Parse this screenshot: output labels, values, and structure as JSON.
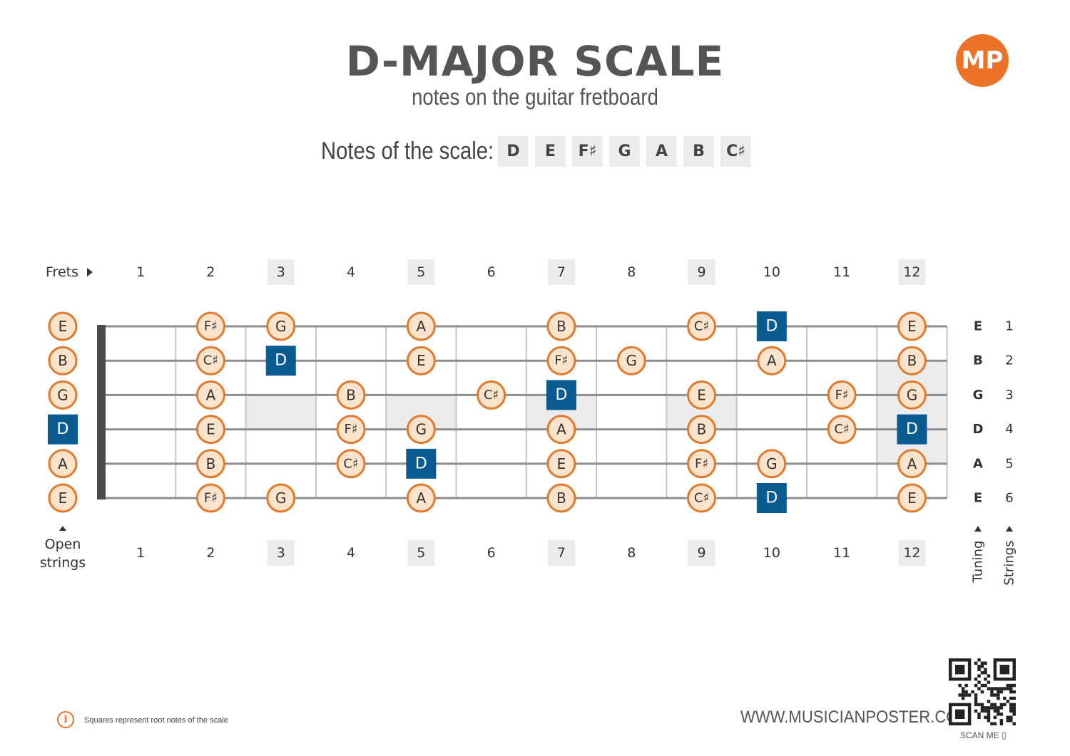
{
  "header": {
    "title": "D-MAJOR SCALE",
    "subtitle": "notes on the guitar fretboard",
    "logo_text": "MP"
  },
  "scale": {
    "label": "Notes of the scale:",
    "notes": [
      "D",
      "E",
      "F♯",
      "G",
      "A",
      "B",
      "C♯"
    ]
  },
  "fretboard": {
    "frets_label": "Frets",
    "fret_numbers": [
      "1",
      "2",
      "3",
      "4",
      "5",
      "6",
      "7",
      "8",
      "9",
      "10",
      "11",
      "12"
    ],
    "highlighted_frets": [
      3,
      5,
      7,
      9,
      12
    ],
    "open_strings_label": [
      "Open",
      "strings"
    ],
    "tuning_label": "Tuning",
    "strings_label": "Strings",
    "tuning": [
      "E",
      "B",
      "G",
      "D",
      "A",
      "E"
    ],
    "string_numbers": [
      "1",
      "2",
      "3",
      "4",
      "5",
      "6"
    ],
    "positions": [
      {
        "string": 1,
        "notes": [
          {
            "fret": 0,
            "note": "E"
          },
          {
            "fret": 2,
            "note": "F♯"
          },
          {
            "fret": 3,
            "note": "G"
          },
          {
            "fret": 5,
            "note": "A"
          },
          {
            "fret": 7,
            "note": "B"
          },
          {
            "fret": 9,
            "note": "C♯"
          },
          {
            "fret": 10,
            "note": "D",
            "root": true
          },
          {
            "fret": 12,
            "note": "E"
          }
        ]
      },
      {
        "string": 2,
        "notes": [
          {
            "fret": 0,
            "note": "B"
          },
          {
            "fret": 2,
            "note": "C♯"
          },
          {
            "fret": 3,
            "note": "D",
            "root": true
          },
          {
            "fret": 5,
            "note": "E"
          },
          {
            "fret": 7,
            "note": "F♯"
          },
          {
            "fret": 8,
            "note": "G"
          },
          {
            "fret": 10,
            "note": "A"
          },
          {
            "fret": 12,
            "note": "B"
          }
        ]
      },
      {
        "string": 3,
        "notes": [
          {
            "fret": 0,
            "note": "G"
          },
          {
            "fret": 2,
            "note": "A"
          },
          {
            "fret": 4,
            "note": "B"
          },
          {
            "fret": 6,
            "note": "C♯"
          },
          {
            "fret": 7,
            "note": "D",
            "root": true
          },
          {
            "fret": 9,
            "note": "E"
          },
          {
            "fret": 11,
            "note": "F♯"
          },
          {
            "fret": 12,
            "note": "G"
          }
        ]
      },
      {
        "string": 4,
        "notes": [
          {
            "fret": 0,
            "note": "D",
            "root": true
          },
          {
            "fret": 2,
            "note": "E"
          },
          {
            "fret": 4,
            "note": "F♯"
          },
          {
            "fret": 5,
            "note": "G"
          },
          {
            "fret": 7,
            "note": "A"
          },
          {
            "fret": 9,
            "note": "B"
          },
          {
            "fret": 11,
            "note": "C♯"
          },
          {
            "fret": 12,
            "note": "D",
            "root": true
          }
        ]
      },
      {
        "string": 5,
        "notes": [
          {
            "fret": 0,
            "note": "A"
          },
          {
            "fret": 2,
            "note": "B"
          },
          {
            "fret": 4,
            "note": "C♯"
          },
          {
            "fret": 5,
            "note": "D",
            "root": true
          },
          {
            "fret": 7,
            "note": "E"
          },
          {
            "fret": 9,
            "note": "F♯"
          },
          {
            "fret": 10,
            "note": "G"
          },
          {
            "fret": 12,
            "note": "A"
          }
        ]
      },
      {
        "string": 6,
        "notes": [
          {
            "fret": 0,
            "note": "E"
          },
          {
            "fret": 2,
            "note": "F♯"
          },
          {
            "fret": 3,
            "note": "G"
          },
          {
            "fret": 5,
            "note": "A"
          },
          {
            "fret": 7,
            "note": "B"
          },
          {
            "fret": 9,
            "note": "C♯"
          },
          {
            "fret": 10,
            "note": "D",
            "root": true
          },
          {
            "fret": 12,
            "note": "E"
          }
        ]
      }
    ]
  },
  "colors": {
    "note_fill": "#fbe3cc",
    "note_border": "#e07a2e",
    "root_fill": "#0b5b93",
    "marker_fill": "#ececec",
    "string_color": "#8e8e8e",
    "fret_color": "#c6c6c6",
    "nut_color": "#4a4a4a"
  },
  "footer": {
    "info_icon": "i",
    "info_text": "Squares represent root notes of the scale",
    "website": "WWW.MUSICIANPOSTER.COM",
    "scan_label": "SCAN ME ▯"
  }
}
